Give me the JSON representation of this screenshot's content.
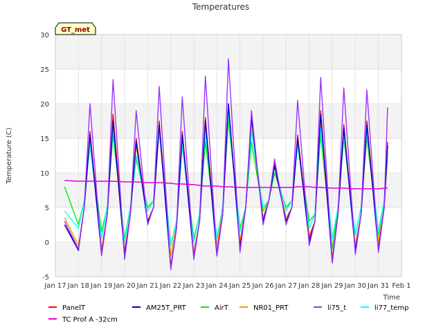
{
  "chart_data": {
    "type": "line",
    "title": "Temperatures",
    "xlabel": "Time",
    "ylabel": "Temperature (C)",
    "ylim": [
      -5,
      30
    ],
    "yticks": [
      -5,
      0,
      5,
      10,
      15,
      20,
      25,
      30
    ],
    "xlim": [
      17,
      32
    ],
    "xticks": [
      {
        "value": 17,
        "label": "Jan 17"
      },
      {
        "value": 18,
        "label": "Jan 18"
      },
      {
        "value": 19,
        "label": "Jan 19"
      },
      {
        "value": 20,
        "label": "Jan 20"
      },
      {
        "value": 21,
        "label": "Jan 21"
      },
      {
        "value": 22,
        "label": "Jan 22"
      },
      {
        "value": 23,
        "label": "Jan 23"
      },
      {
        "value": 24,
        "label": "Jan 24"
      },
      {
        "value": 25,
        "label": "Jan 25"
      },
      {
        "value": 26,
        "label": "Jan 26"
      },
      {
        "value": 27,
        "label": "Jan 27"
      },
      {
        "value": 28,
        "label": "Jan 28"
      },
      {
        "value": 29,
        "label": "Jan 29"
      },
      {
        "value": 30,
        "label": "Jan 30"
      },
      {
        "value": 31,
        "label": "Jan 31"
      },
      {
        "value": 32,
        "label": "Feb 1"
      }
    ],
    "grid": true,
    "banded_background": true,
    "badge": "GT_met",
    "legend_position": "bottom",
    "day_x": [
      17.4,
      18.0,
      18.25,
      18.5,
      19.0,
      19.25,
      19.5,
      20.0,
      20.25,
      20.5,
      21.0,
      21.25,
      21.5,
      22.0,
      22.25,
      22.5,
      23.0,
      23.25,
      23.5,
      24.0,
      24.25,
      24.5,
      25.0,
      25.25,
      25.5,
      26.0,
      26.25,
      26.5,
      27.0,
      27.25,
      27.5,
      28.0,
      28.25,
      28.5,
      29.0,
      29.25,
      29.5,
      30.0,
      30.25,
      30.5,
      31.0,
      31.25,
      31.4
    ],
    "series": [
      {
        "name": "PanelT",
        "color": "#ff0000",
        "y": [
          2.5,
          -1.0,
          5.0,
          16.0,
          -1.5,
          4.0,
          18.5,
          -1.5,
          4.0,
          15.0,
          3.0,
          5.0,
          17.5,
          -3.5,
          2.0,
          16.0,
          -2.0,
          3.0,
          18.0,
          -1.5,
          4.0,
          20.0,
          -0.5,
          5.0,
          18.5,
          3.0,
          6.0,
          11.5,
          3.0,
          5.0,
          15.5,
          0.5,
          3.0,
          19.0,
          -2.5,
          4.0,
          17.0,
          -1.0,
          4.0,
          17.5,
          -1.0,
          5.0,
          14.5
        ]
      },
      {
        "name": "AM25T_PRT",
        "color": "#0000cc",
        "y": [
          2.5,
          -1.2,
          5.0,
          15.5,
          -1.8,
          4.0,
          17.5,
          -2.0,
          4.0,
          14.5,
          2.8,
          5.0,
          17.0,
          -3.8,
          2.0,
          15.5,
          -2.3,
          3.0,
          17.5,
          -2.0,
          4.0,
          20.0,
          -1.0,
          5.0,
          18.0,
          3.0,
          6.0,
          11.0,
          3.0,
          5.0,
          15.0,
          0.0,
          3.0,
          18.5,
          -3.0,
          4.0,
          16.5,
          -1.3,
          4.0,
          17.0,
          -1.2,
          5.0,
          14.0
        ]
      },
      {
        "name": "AirT",
        "color": "#00ee00",
        "y": [
          8.0,
          2.5,
          6.0,
          14.5,
          1.5,
          5.0,
          15.5,
          0.5,
          5.0,
          12.0,
          5.0,
          6.0,
          16.5,
          -0.5,
          3.0,
          14.0,
          0.5,
          4.0,
          14.5,
          0.5,
          5.0,
          17.5,
          2.0,
          5.0,
          14.5,
          4.5,
          6.0,
          10.0,
          5.0,
          6.0,
          14.0,
          3.0,
          4.0,
          15.5,
          -1.0,
          5.0,
          15.0,
          1.0,
          5.0,
          15.0,
          1.0,
          6.0,
          12.0
        ]
      },
      {
        "name": "NR01_PRT",
        "color": "#ff9900",
        "y": [
          3.5,
          -0.5,
          5.0,
          15.0,
          -1.0,
          4.0,
          17.0,
          -1.5,
          4.0,
          14.0,
          3.0,
          5.0,
          16.0,
          -2.0,
          2.5,
          15.0,
          -1.5,
          3.0,
          17.0,
          -0.5,
          4.5,
          19.0,
          0.0,
          5.0,
          17.5,
          3.5,
          6.0,
          11.0,
          3.5,
          5.0,
          15.0,
          1.0,
          3.0,
          17.5,
          -2.5,
          4.0,
          16.0,
          -0.5,
          4.0,
          16.0,
          0.0,
          5.0,
          13.0
        ]
      },
      {
        "name": "TC Prof A -32cm",
        "color": "#dd00dd",
        "y": [
          8.9,
          8.8,
          8.8,
          8.8,
          8.8,
          8.8,
          8.8,
          8.7,
          8.7,
          8.7,
          8.6,
          8.6,
          8.6,
          8.5,
          8.4,
          8.4,
          8.3,
          8.2,
          8.1,
          8.1,
          8.0,
          8.0,
          7.9,
          7.9,
          7.9,
          7.9,
          7.9,
          7.9,
          7.9,
          7.9,
          8.0,
          8.0,
          7.9,
          7.9,
          7.8,
          7.8,
          7.8,
          7.7,
          7.7,
          7.7,
          7.7,
          7.8,
          7.8
        ]
      },
      {
        "name": "li75_t",
        "color": "#9933ff",
        "y": [
          3.0,
          -1.0,
          5.0,
          20.0,
          -2.0,
          4.0,
          23.5,
          -2.5,
          4.0,
          19.0,
          2.5,
          5.0,
          22.5,
          -4.0,
          2.0,
          21.0,
          -2.5,
          3.0,
          24.0,
          -2.0,
          4.0,
          26.5,
          -1.5,
          5.0,
          19.0,
          2.5,
          6.0,
          12.0,
          2.5,
          5.0,
          20.5,
          -0.5,
          3.0,
          23.8,
          -3.0,
          4.0,
          22.3,
          -1.8,
          4.0,
          22.0,
          -1.5,
          5.0,
          19.5
        ]
      },
      {
        "name": "li77_temp",
        "color": "#00ffff",
        "y": [
          4.5,
          2.0,
          6.0,
          14.0,
          0.5,
          5.0,
          16.5,
          0.0,
          5.0,
          12.5,
          4.5,
          6.0,
          16.0,
          -0.5,
          3.0,
          14.0,
          0.0,
          4.0,
          16.0,
          0.5,
          5.0,
          18.5,
          1.5,
          5.0,
          16.0,
          5.0,
          6.0,
          11.0,
          4.5,
          6.0,
          14.0,
          2.0,
          4.0,
          16.5,
          0.5,
          5.0,
          15.5,
          1.0,
          5.0,
          16.0,
          1.5,
          6.0,
          13.0
        ]
      }
    ]
  }
}
